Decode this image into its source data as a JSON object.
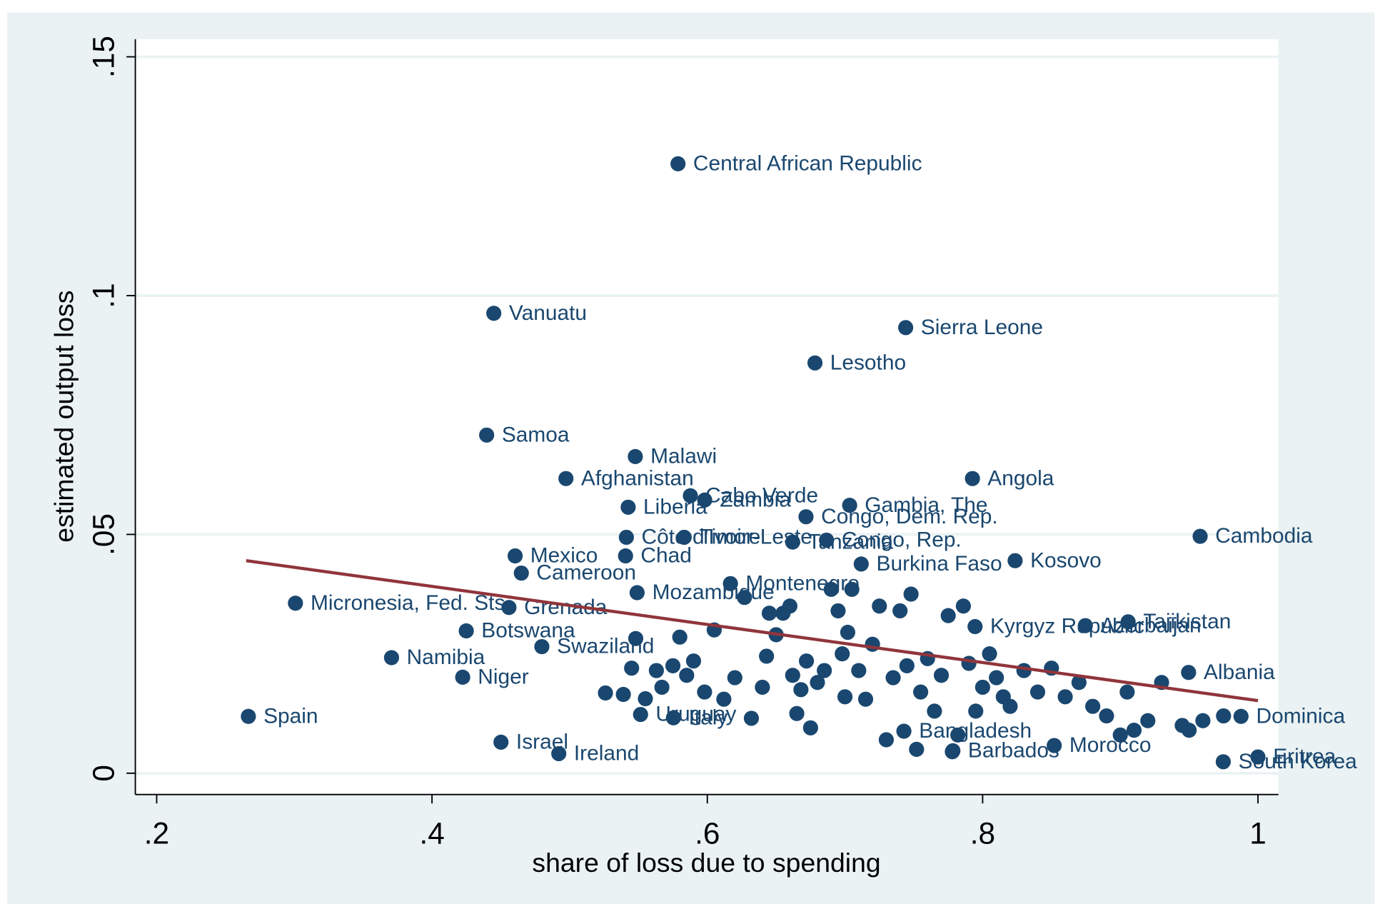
{
  "chart_data": {
    "type": "scatter",
    "x_label": "share of loss due to spending",
    "y_label": "estimated output loss",
    "xlim": [
      0.1845,
      1.0149
    ],
    "ylim": [
      -0.00447,
      0.1537
    ],
    "xticks": [
      {
        "value": 0.2,
        "label": ".2"
      },
      {
        "value": 0.4,
        "label": ".4"
      },
      {
        "value": 0.6,
        "label": ".6"
      },
      {
        "value": 0.8,
        "label": ".8"
      },
      1
    ],
    "yticks": [
      0,
      {
        "value": 0.05,
        "label": ".05"
      },
      {
        "value": 0.1,
        "label": ".1"
      },
      {
        "value": 0.15,
        "label": ".15"
      }
    ],
    "grid": true,
    "points": {
      "color": "#1a476f",
      "labels": [
        "Central African Republic",
        "Vanuatu",
        "Sierra Leone",
        "Lesotho",
        "Samoa",
        "Malawi",
        "Afghanistan",
        "Angola",
        "Cabo Verde",
        "Zambia",
        "Gambia, The",
        "Liberia",
        "Congo, Dem. Rep.",
        "Cambodia",
        "Côte d'Ivoire",
        "Timor-Leste",
        "Tanzania",
        "Congo, Rep.",
        "Mexico",
        "Chad",
        "Kosovo",
        "Burkina Faso",
        "Cameroon",
        "Montenegro",
        "Mozambique",
        "Micronesia, Fed. Sts.",
        "Grenada",
        "Botswana",
        "Swaziland",
        "Namibia",
        "Niger",
        "Spain",
        "Israel",
        "Ireland",
        "Uruguay",
        "Italy",
        "Kyrgyz Republic",
        "Tajikistan",
        "Azerbaijan",
        "Albania",
        "Dominica",
        "Eritrea",
        "South Korea",
        "Morocco",
        "Barbados",
        "Bangladesh",
        null,
        null,
        null,
        null,
        null,
        null,
        null,
        null,
        null,
        null,
        null,
        null,
        null,
        null,
        null,
        null,
        null,
        null,
        null,
        null,
        null,
        null,
        null,
        null,
        null,
        null,
        null,
        null,
        null,
        null,
        null,
        null,
        null,
        null,
        null,
        null,
        null,
        null,
        null,
        null,
        null,
        null,
        null,
        null,
        null,
        null,
        null,
        null,
        null,
        null,
        null,
        null,
        null,
        null,
        null,
        null,
        null,
        null,
        null,
        null,
        null,
        null,
        null,
        null,
        null,
        null,
        null,
        null,
        null,
        null,
        null,
        null,
        null,
        null,
        null,
        null,
        null
      ],
      "x": [
        0.5787,
        0.4449,
        0.7441,
        0.6782,
        0.4397,
        0.5477,
        0.4973,
        0.7926,
        0.5877,
        0.5981,
        0.7034,
        0.5425,
        0.6717,
        0.958,
        0.5412,
        0.5832,
        0.662,
        0.6866,
        0.4604,
        0.5406,
        0.8236,
        0.7118,
        0.4649,
        0.6168,
        0.549,
        0.3008,
        0.4559,
        0.4249,
        0.4798,
        0.3706,
        0.4223,
        0.2666,
        0.4501,
        0.4921,
        0.5515,
        0.5754,
        0.7945,
        0.9057,
        0.8746,
        0.9496,
        0.9877,
        1.0,
        0.9748,
        0.852,
        0.7784,
        0.7428,
        0.526,
        0.539,
        0.545,
        0.548,
        0.555,
        0.563,
        0.567,
        0.575,
        0.58,
        0.585,
        0.59,
        0.598,
        0.605,
        0.612,
        0.62,
        0.627,
        0.632,
        0.64,
        0.643,
        0.645,
        0.65,
        0.655,
        0.66,
        0.662,
        0.665,
        0.668,
        0.672,
        0.675,
        0.68,
        0.685,
        0.69,
        0.695,
        0.698,
        0.7,
        0.702,
        0.705,
        0.71,
        0.715,
        0.72,
        0.725,
        0.73,
        0.735,
        0.74,
        0.745,
        0.748,
        0.752,
        0.755,
        0.76,
        0.765,
        0.77,
        0.775,
        0.778,
        0.782,
        0.786,
        0.79,
        0.795,
        0.8,
        0.805,
        0.81,
        0.815,
        0.82,
        0.83,
        0.84,
        0.85,
        0.86,
        0.87,
        0.88,
        0.89,
        0.9,
        0.905,
        0.91,
        0.92,
        0.93,
        0.945,
        0.95,
        0.96,
        0.975
      ],
      "y": [
        0.1276,
        0.0963,
        0.0933,
        0.0859,
        0.0708,
        0.0663,
        0.0617,
        0.0617,
        0.0581,
        0.0572,
        0.0561,
        0.0557,
        0.0537,
        0.0496,
        0.0494,
        0.0494,
        0.0484,
        0.0488,
        0.0455,
        0.0455,
        0.0445,
        0.0438,
        0.0419,
        0.0397,
        0.0378,
        0.0356,
        0.0347,
        0.0298,
        0.0265,
        0.0242,
        0.0201,
        0.0119,
        0.0065,
        0.0041,
        0.0123,
        0.0116,
        0.0307,
        0.0317,
        0.0309,
        0.0211,
        0.0119,
        0.0034,
        0.0024,
        0.0058,
        0.0047,
        0.0088,
        0.0168,
        0.0165,
        0.022,
        0.0282,
        0.0156,
        0.0215,
        0.018,
        0.0225,
        0.0285,
        0.0205,
        0.0235,
        0.017,
        0.03,
        0.0155,
        0.02,
        0.0368,
        0.0115,
        0.018,
        0.0245,
        0.0335,
        0.029,
        0.0335,
        0.035,
        0.0205,
        0.0125,
        0.0175,
        0.0235,
        0.0095,
        0.019,
        0.0215,
        0.0385,
        0.034,
        0.025,
        0.016,
        0.0295,
        0.0385,
        0.0215,
        0.0155,
        0.027,
        0.035,
        0.007,
        0.02,
        0.034,
        0.0225,
        0.0375,
        0.005,
        0.017,
        0.024,
        0.013,
        0.0205,
        0.033,
        0.0045,
        0.008,
        0.035,
        0.023,
        0.013,
        0.018,
        0.025,
        0.02,
        0.016,
        0.014,
        0.0215,
        0.017,
        0.022,
        0.016,
        0.019,
        0.014,
        0.012,
        0.008,
        0.017,
        0.009,
        0.011,
        0.019,
        0.01,
        0.009,
        0.011,
        0.012
      ]
    },
    "fit_line": {
      "color": "#90353b",
      "x": [
        0.265,
        1.0
      ],
      "y": [
        0.0445,
        0.0152
      ]
    }
  }
}
